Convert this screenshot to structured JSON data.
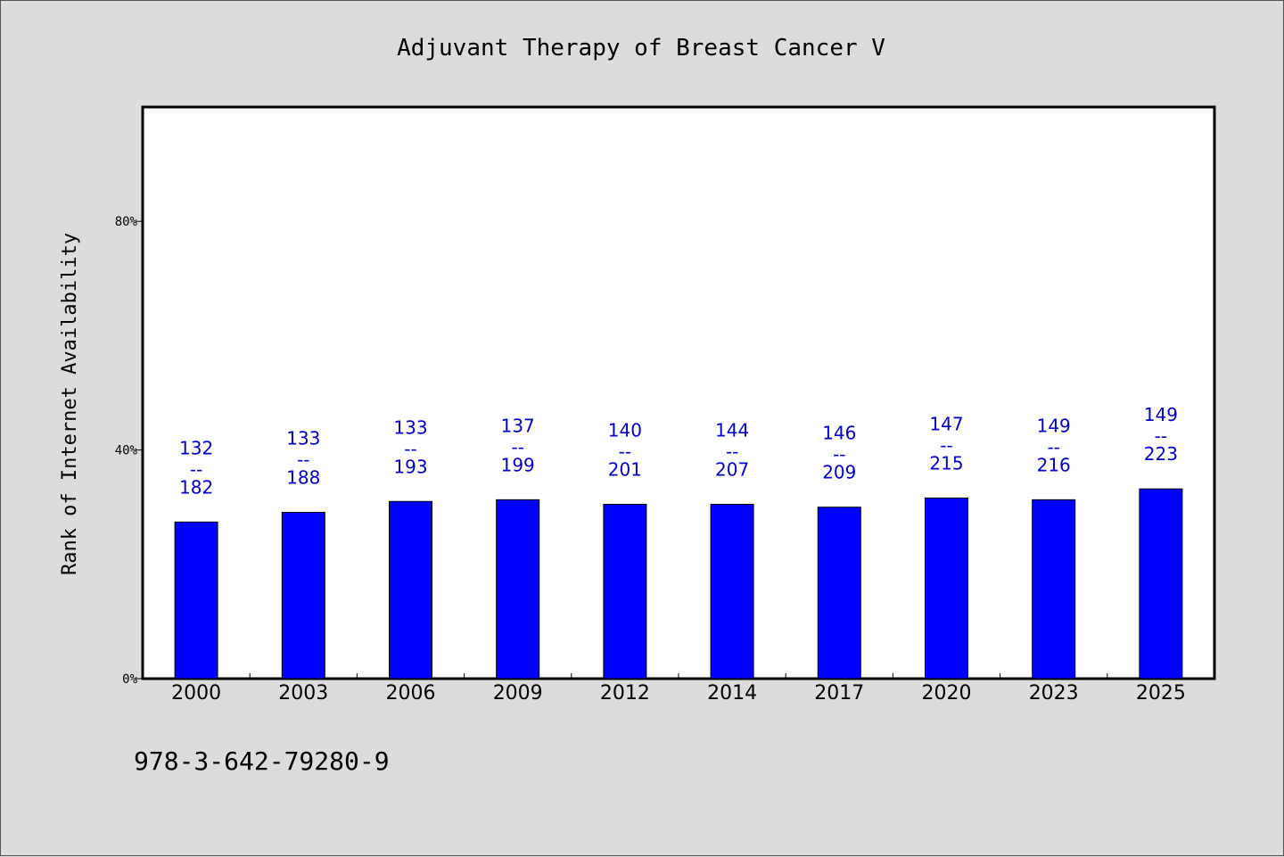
{
  "colors": {
    "background": "#dcdcdc",
    "plot_background": "#ffffff",
    "bar_fill": "#0000ff",
    "bar_stroke": "#000000",
    "label_color": "#0000cc"
  },
  "footer": {
    "isbn": "978-3-642-79280-9"
  },
  "chart_data": {
    "type": "bar",
    "title": "Adjuvant Therapy of Breast Cancer V",
    "ylabel": "Rank of Internet Availability",
    "xlabel": "",
    "ylim": [
      0,
      100
    ],
    "yticks": [
      0,
      40,
      80
    ],
    "ytick_labels": [
      "0%",
      "40%",
      "80%"
    ],
    "grid": false,
    "categories": [
      "2000",
      "2003",
      "2006",
      "2009",
      "2012",
      "2014",
      "2017",
      "2020",
      "2023",
      "2025"
    ],
    "values": [
      27.4,
      29.1,
      31.0,
      31.3,
      30.5,
      30.5,
      30.0,
      31.6,
      31.3,
      33.2
    ],
    "bar_labels": [
      {
        "top": "132",
        "sep": "--",
        "bottom": "182"
      },
      {
        "top": "133",
        "sep": "--",
        "bottom": "188"
      },
      {
        "top": "133",
        "sep": "--",
        "bottom": "193"
      },
      {
        "top": "137",
        "sep": "--",
        "bottom": "199"
      },
      {
        "top": "140",
        "sep": "--",
        "bottom": "201"
      },
      {
        "top": "144",
        "sep": "--",
        "bottom": "207"
      },
      {
        "top": "146",
        "sep": "--",
        "bottom": "209"
      },
      {
        "top": "147",
        "sep": "--",
        "bottom": "215"
      },
      {
        "top": "149",
        "sep": "--",
        "bottom": "216"
      },
      {
        "top": "149",
        "sep": "--",
        "bottom": "223"
      }
    ]
  }
}
